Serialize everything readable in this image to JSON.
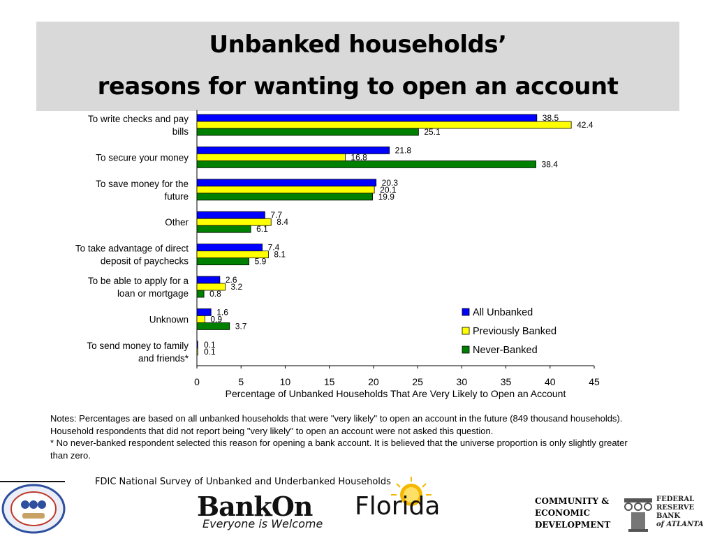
{
  "title": {
    "line1": "Unbanked households’",
    "line2": "reasons for wanting to open an account"
  },
  "chart_data": {
    "type": "bar",
    "orientation": "horizontal",
    "categories": [
      [
        "To write checks and pay",
        "bills"
      ],
      [
        "To secure your money"
      ],
      [
        "To save money for the",
        "future"
      ],
      [
        "Other"
      ],
      [
        "To take advantage of direct",
        "deposit of paychecks"
      ],
      [
        "To be able to apply for a",
        "loan or mortgage"
      ],
      [
        "Unknown"
      ],
      [
        "To send money to family",
        "and friends*"
      ]
    ],
    "series": [
      {
        "name": "All Unbanked",
        "color": "#0000ff",
        "values": [
          38.5,
          21.8,
          20.3,
          7.7,
          7.4,
          2.6,
          1.6,
          0.1
        ],
        "labels": [
          "38.5",
          "21.8",
          "20.3",
          "7.7",
          "7.4",
          "2.6",
          "1.6",
          "0.1"
        ]
      },
      {
        "name": "Previously Banked",
        "color": "#ffff00",
        "values": [
          42.4,
          16.8,
          20.1,
          8.4,
          8.1,
          3.2,
          0.9,
          0.1
        ],
        "labels": [
          "42.4",
          "16.8",
          "20.1",
          "8.4",
          "8.1",
          "3.2",
          "0.9",
          "0.1"
        ]
      },
      {
        "name": "Never-Banked",
        "color": "#008000",
        "values": [
          25.1,
          38.4,
          19.9,
          6.1,
          5.9,
          0.8,
          3.7,
          0
        ],
        "labels": [
          "25.1",
          "38.4",
          "19.9",
          "6.1",
          "5.9",
          "0.8",
          "3.7",
          ""
        ]
      }
    ],
    "xlim": [
      0,
      45
    ],
    "xticks": [
      0,
      5,
      10,
      15,
      20,
      25,
      30,
      35,
      40,
      45
    ],
    "xlabel": "Percentage of Unbanked Households That Are Very Likely to Open an Account",
    "ylabel": "",
    "legend_position": "bottom-right",
    "grid": false
  },
  "notes": {
    "line1": "Notes: Percentages are based on all unbanked households that were \"very likely\" to open an account in the future (849 thousand households). Household respondents that did not report being \"very likely\" to open an account were not asked this question.",
    "line2": "* No never-banked respondent selected this reason for opening a bank account. It is believed that the universe proportion is only slightly greater than zero."
  },
  "source": "FDIC National Survey of Unbanked and Underbanked Households",
  "logos": {
    "bankon_bank": "BankOn",
    "bankon_florida": "Florida",
    "bankon_tagline": "Everyone is Welcome",
    "seal_text": "THE ALABAMA ASSET BUILDING COALITION",
    "ced_lines": [
      "COMMUNITY &",
      "ECONOMIC",
      "DEVELOPMENT"
    ],
    "frb_lines": [
      "FEDERAL",
      "RESERVE",
      "BANK",
      "of ATLANTA"
    ]
  }
}
